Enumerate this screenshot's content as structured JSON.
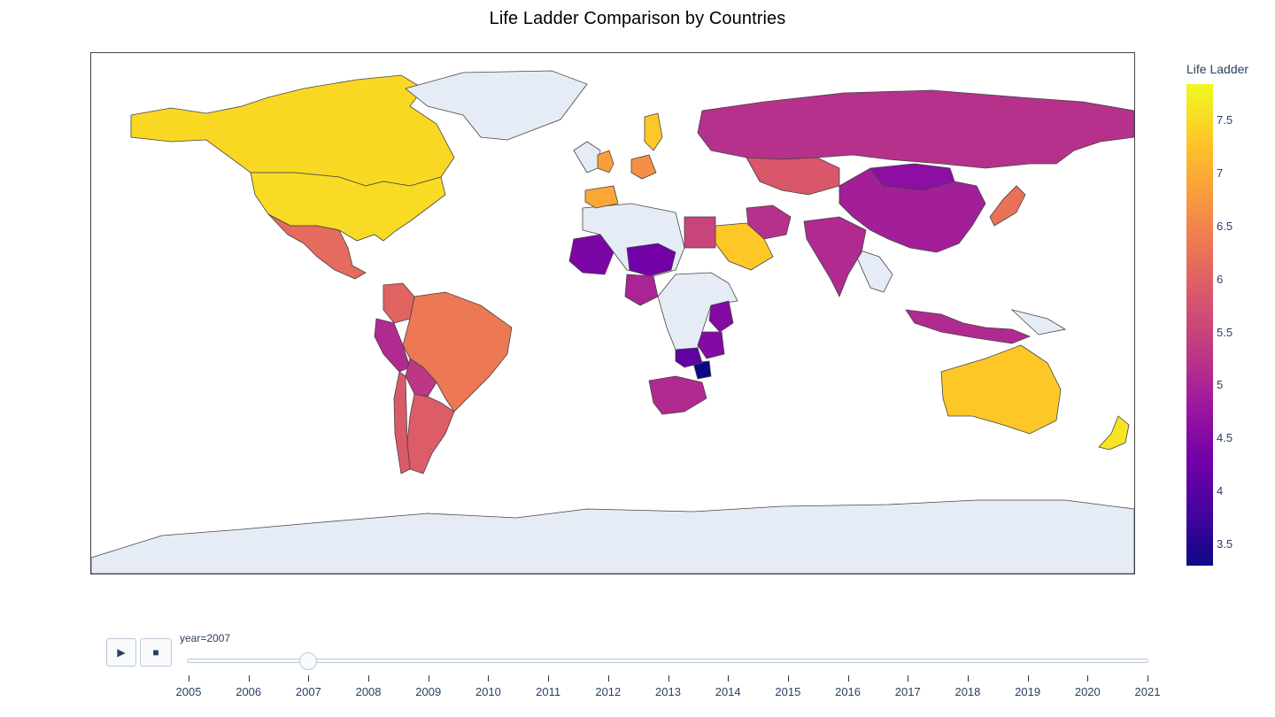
{
  "title": "Life Ladder Comparison by Countries",
  "colorbar": {
    "title": "Life Ladder",
    "ticks": [
      "7.5",
      "7",
      "6.5",
      "6",
      "5.5",
      "5",
      "4.5",
      "4",
      "3.5"
    ],
    "colorscale": [
      "#0d0887",
      "#46039f",
      "#7201a8",
      "#9c179e",
      "#bd3786",
      "#d8576b",
      "#ed7953",
      "#fb9f3a",
      "#fdca26",
      "#f0f921"
    ],
    "range": [
      3.28,
      7.83
    ]
  },
  "map": {
    "no_data_color": "#e5ecf6",
    "border_color": "#444444",
    "regions": [
      {
        "name": "Canada",
        "value": 7.48
      },
      {
        "name": "United States",
        "value": 7.51
      },
      {
        "name": "Mexico",
        "value": 6.1
      },
      {
        "name": "Brazil",
        "value": 6.3
      },
      {
        "name": "Argentina",
        "value": 5.9
      },
      {
        "name": "Chile",
        "value": 5.85
      },
      {
        "name": "Colombia",
        "value": 6.0
      },
      {
        "name": "Peru",
        "value": 5.1
      },
      {
        "name": "Bolivia",
        "value": 5.3
      },
      {
        "name": "United Kingdom",
        "value": 6.8
      },
      {
        "name": "Spain",
        "value": 6.9
      },
      {
        "name": "Sweden",
        "value": 7.3
      },
      {
        "name": "Germany",
        "value": 6.6
      },
      {
        "name": "Russia",
        "value": 5.2
      },
      {
        "name": "Kazakhstan",
        "value": 5.8
      },
      {
        "name": "China",
        "value": 4.9
      },
      {
        "name": "Mongolia",
        "value": 4.6
      },
      {
        "name": "India",
        "value": 5.1
      },
      {
        "name": "Iran",
        "value": 5.2
      },
      {
        "name": "Saudi Arabia",
        "value": 7.3
      },
      {
        "name": "Egypt",
        "value": 5.5
      },
      {
        "name": "Mali",
        "value": 4.4
      },
      {
        "name": "Niger",
        "value": 4.3
      },
      {
        "name": "Nigeria",
        "value": 5.0
      },
      {
        "name": "Kenya",
        "value": 4.5
      },
      {
        "name": "Tanzania",
        "value": 4.5
      },
      {
        "name": "Zimbabwe",
        "value": 3.28
      },
      {
        "name": "Zambia",
        "value": 4.1
      },
      {
        "name": "South Africa",
        "value": 5.1
      },
      {
        "name": "Japan",
        "value": 6.2
      },
      {
        "name": "Indonesia",
        "value": 5.1
      },
      {
        "name": "Australia",
        "value": 7.3
      },
      {
        "name": "New Zealand",
        "value": 7.6
      },
      {
        "name": "Greenland",
        "value": null
      },
      {
        "name": "Antarctica",
        "value": null
      }
    ]
  },
  "controls": {
    "play_icon": "▶",
    "stop_icon": "■",
    "current_label": "year=2007",
    "current_year": 2007,
    "years": [
      "2005",
      "2006",
      "2007",
      "2008",
      "2009",
      "2010",
      "2011",
      "2012",
      "2013",
      "2014",
      "2015",
      "2016",
      "2017",
      "2018",
      "2019",
      "2020",
      "2021"
    ]
  }
}
